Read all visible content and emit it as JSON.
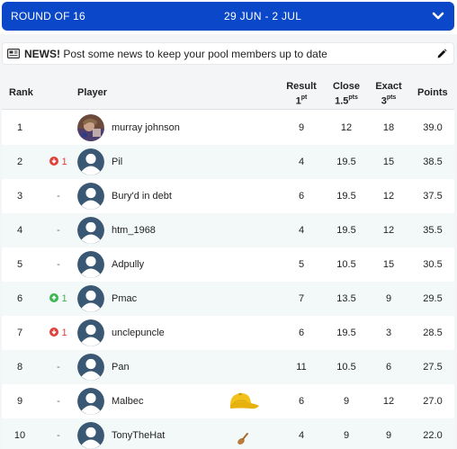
{
  "round": {
    "name": "ROUND OF 16",
    "dates": "29 JUN - 2 JUL"
  },
  "news": {
    "label": "NEWS!",
    "text": "Post some news to keep your pool members up to date"
  },
  "columns": {
    "rank": "Rank",
    "player": "Player",
    "result": "Result",
    "result_pts": "1",
    "result_sup": "pt",
    "close": "Close",
    "close_pts": "1.5",
    "close_sup": "pts",
    "exact": "Exact",
    "exact_pts": "3",
    "exact_sup": "pts",
    "points": "Points"
  },
  "colors": {
    "accent": "#0a47c9",
    "down": "#e0403a",
    "up": "#3db552",
    "avatar": "#3a5873",
    "row_alt": "#f3f8f9"
  },
  "rows": [
    {
      "rank": "1",
      "move": "",
      "move_dir": "none",
      "player": "murray johnson",
      "avatar": "photo",
      "badge": "",
      "result": "9",
      "close": "12",
      "exact": "18",
      "points": "39.0"
    },
    {
      "rank": "2",
      "move": "1",
      "move_dir": "down",
      "player": "Pil",
      "avatar": "default",
      "badge": "",
      "result": "4",
      "close": "19.5",
      "exact": "15",
      "points": "38.5"
    },
    {
      "rank": "3",
      "move": "-",
      "move_dir": "none",
      "player": "Bury'd in debt",
      "avatar": "default",
      "badge": "",
      "result": "6",
      "close": "19.5",
      "exact": "12",
      "points": "37.5"
    },
    {
      "rank": "4",
      "move": "-",
      "move_dir": "none",
      "player": "htm_1968",
      "avatar": "default",
      "badge": "",
      "result": "4",
      "close": "19.5",
      "exact": "12",
      "points": "35.5"
    },
    {
      "rank": "5",
      "move": "-",
      "move_dir": "none",
      "player": "Adpully",
      "avatar": "default",
      "badge": "",
      "result": "5",
      "close": "10.5",
      "exact": "15",
      "points": "30.5"
    },
    {
      "rank": "6",
      "move": "1",
      "move_dir": "up",
      "player": "Pmac",
      "avatar": "default",
      "badge": "",
      "result": "7",
      "close": "13.5",
      "exact": "9",
      "points": "29.5"
    },
    {
      "rank": "7",
      "move": "1",
      "move_dir": "down",
      "player": "unclepuncle",
      "avatar": "default",
      "badge": "",
      "result": "6",
      "close": "19.5",
      "exact": "3",
      "points": "28.5"
    },
    {
      "rank": "8",
      "move": "-",
      "move_dir": "none",
      "player": "Pan",
      "avatar": "default",
      "badge": "",
      "result": "11",
      "close": "10.5",
      "exact": "6",
      "points": "27.5"
    },
    {
      "rank": "9",
      "move": "-",
      "move_dir": "none",
      "player": "Malbec",
      "avatar": "default",
      "badge": "yellow-cap-icon",
      "result": "6",
      "close": "9",
      "exact": "12",
      "points": "27.0"
    },
    {
      "rank": "10",
      "move": "-",
      "move_dir": "none",
      "player": "TonyTheHat",
      "avatar": "default",
      "badge": "wooden-spoon-icon",
      "result": "4",
      "close": "9",
      "exact": "9",
      "points": "22.0"
    }
  ]
}
